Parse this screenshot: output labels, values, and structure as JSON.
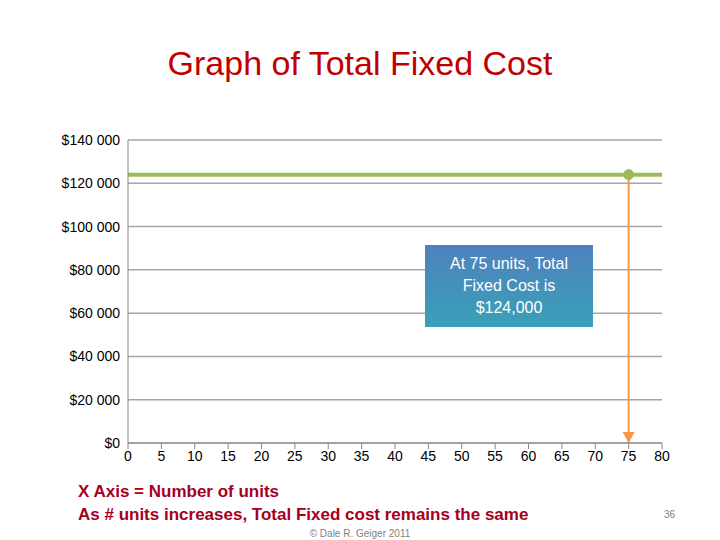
{
  "chart_data": {
    "type": "line",
    "title": "Graph of Total Fixed Cost",
    "x_label": "X Axis = Number of units",
    "note": "As # units increases, Total Fixed cost remains the same",
    "footer": "© Dale R. Geiger 2011",
    "page_number": 36,
    "x": [
      0,
      75,
      80
    ],
    "values": [
      124000,
      124000,
      124000
    ],
    "color": "#9bbb59",
    "xlim": [
      0,
      80
    ],
    "xticks": [
      0,
      5,
      10,
      15,
      20,
      25,
      30,
      35,
      40,
      45,
      50,
      55,
      60,
      65,
      70,
      75,
      80
    ],
    "ylim": [
      0,
      140000
    ],
    "yticks": [
      {
        "value": 0,
        "label": "$0"
      },
      {
        "value": 20000,
        "label": "$20 000"
      },
      {
        "value": 40000,
        "label": "$40 000"
      },
      {
        "value": 60000,
        "label": "$60 000"
      },
      {
        "value": 80000,
        "label": "$80 000"
      },
      {
        "value": 100000,
        "label": "$100 000"
      },
      {
        "value": 120000,
        "label": "$120 000"
      },
      {
        "value": 140000,
        "label": "$140 000"
      }
    ],
    "grid": true,
    "annotation": {
      "text": "At 75 units, Total Fixed Cost is $124,000",
      "x": 75,
      "y": 124000,
      "color": "#f79646"
    }
  }
}
